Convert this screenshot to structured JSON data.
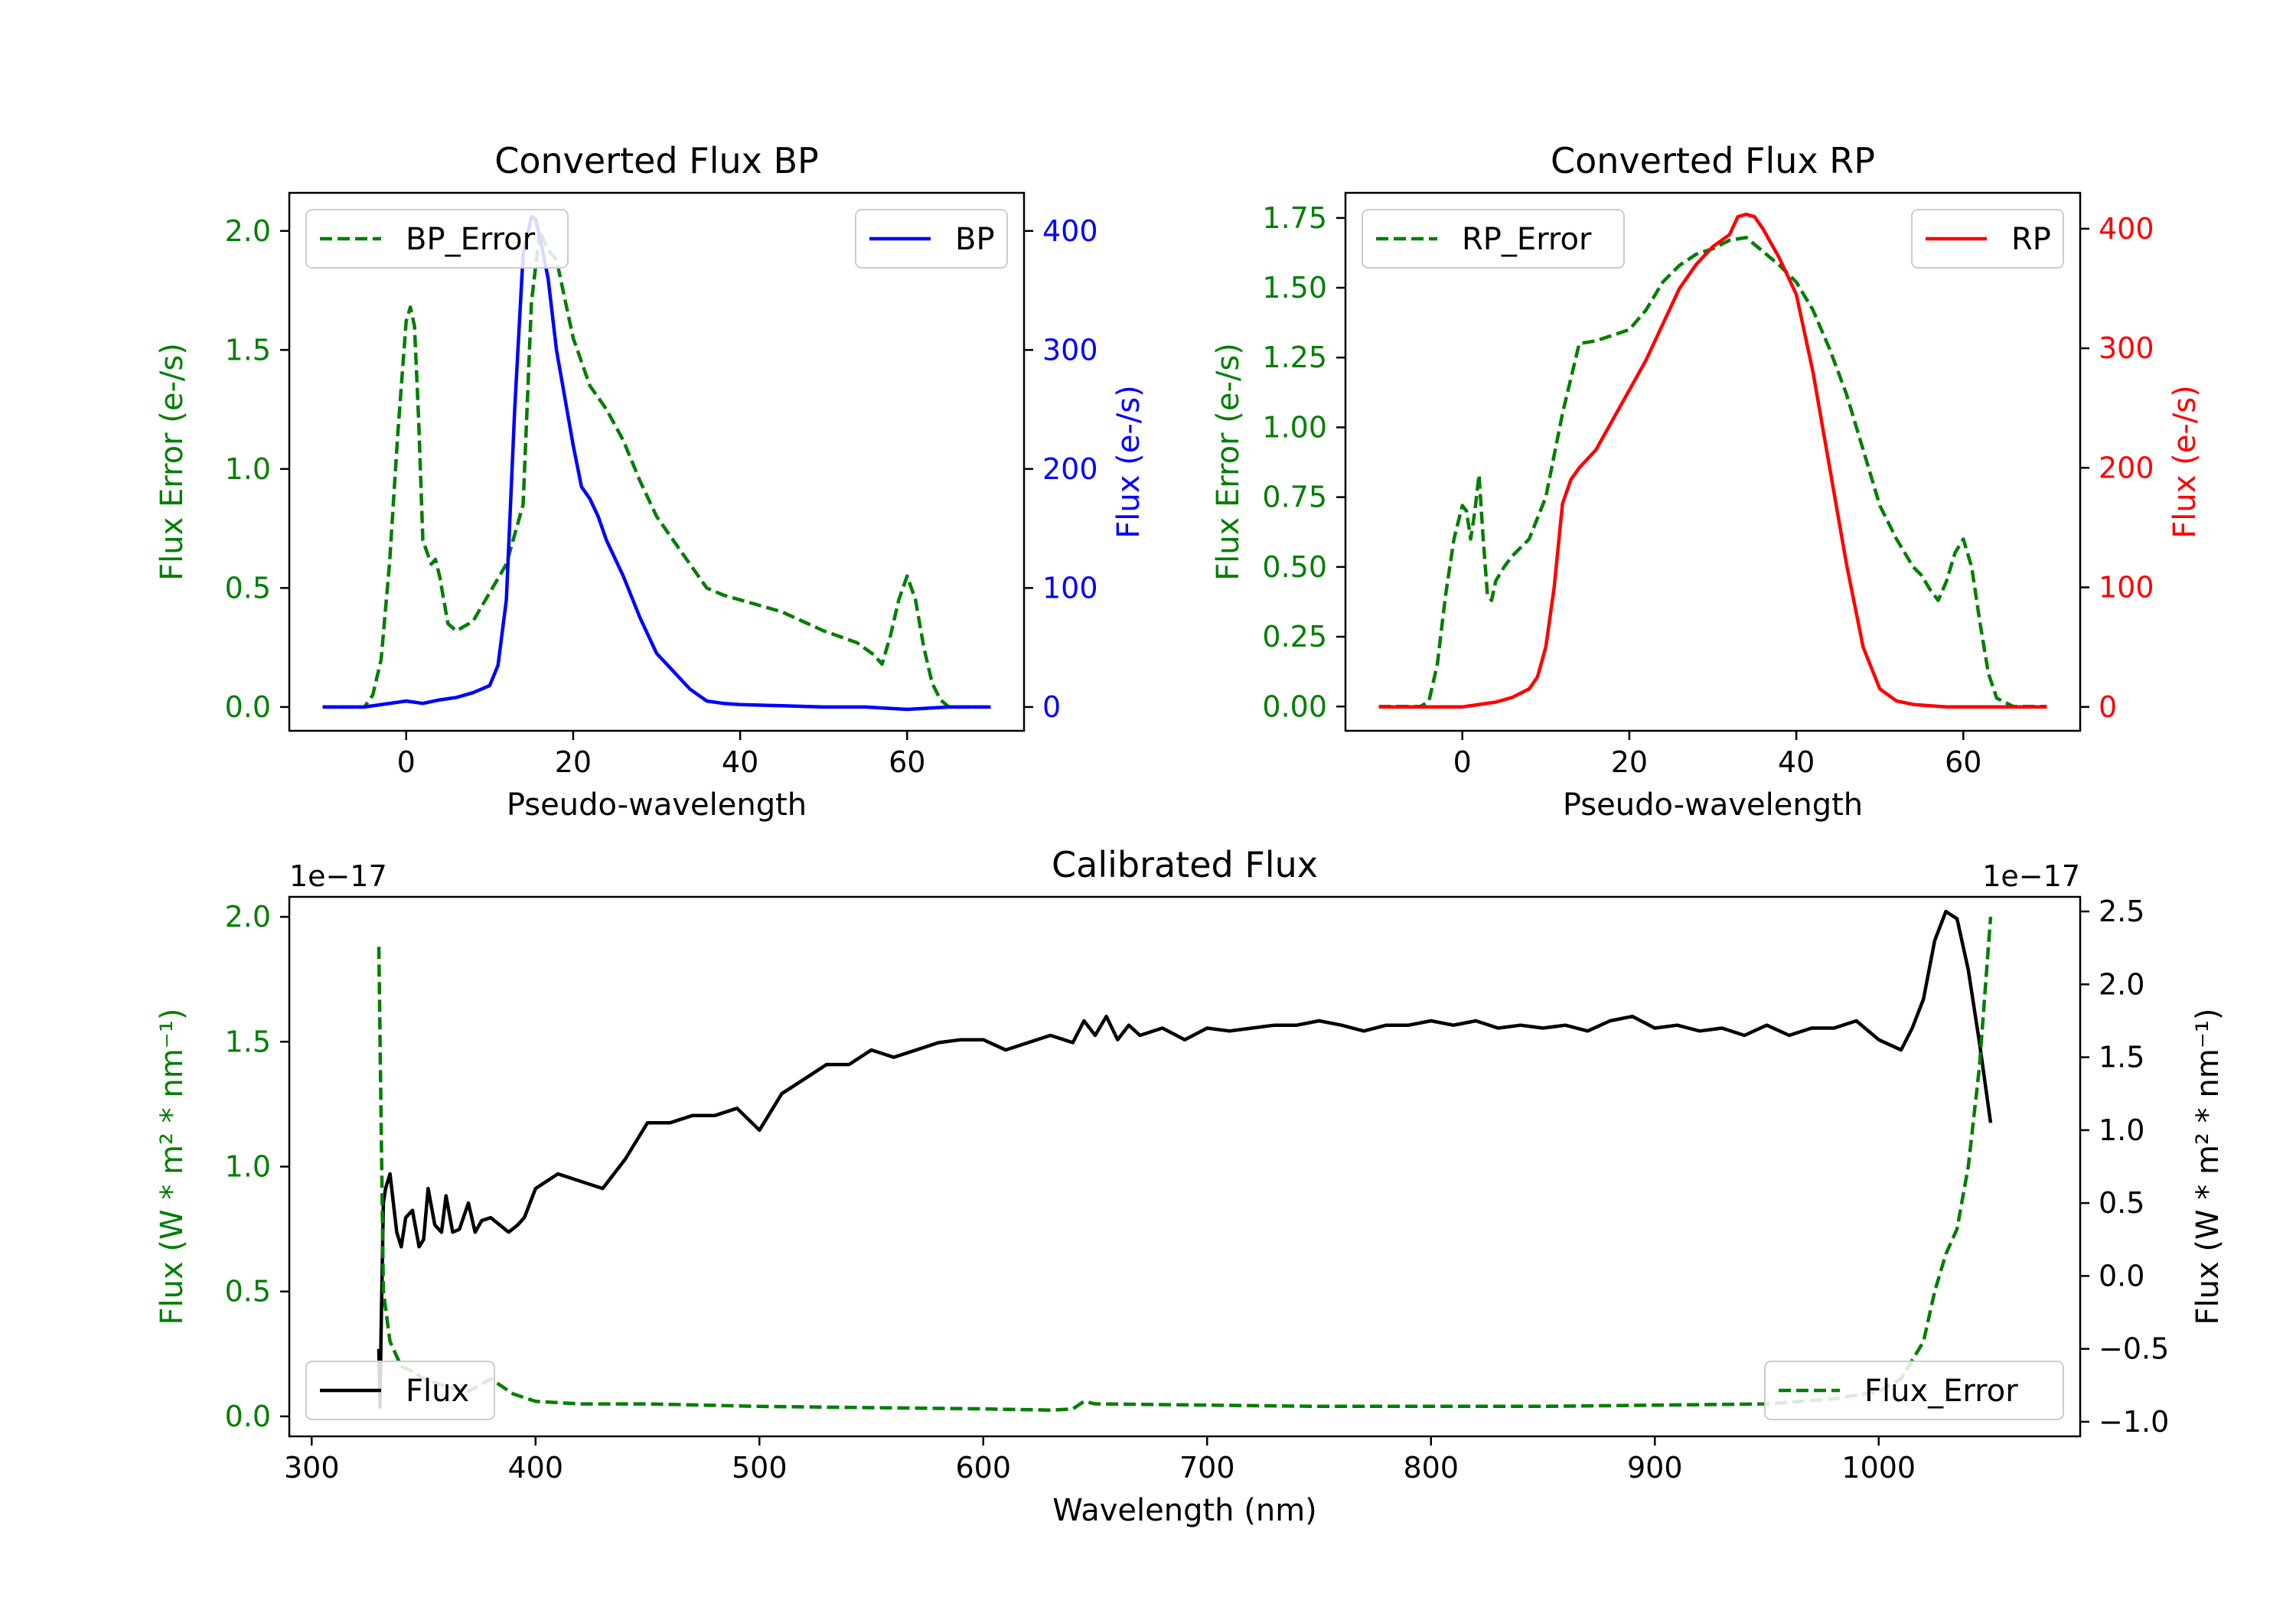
{
  "colors": {
    "green": "#007f00",
    "blue": "#0000ff",
    "red": "#ff0000",
    "black": "#000000"
  },
  "chart_data": [
    {
      "type": "line",
      "title": "Converted Flux BP",
      "xlabel": "Pseudo-wavelength",
      "ylabel": "Flux Error (e-/s)",
      "ylabel_right": "Flux (e-/s)",
      "xlim": [
        -14,
        74
      ],
      "ylim": [
        -0.1,
        2.16
      ],
      "ylim_right": [
        -20,
        432
      ],
      "xticks": [
        0,
        20,
        40,
        60
      ],
      "yticks": [
        "0.0",
        "0.5",
        "1.0",
        "1.5",
        "2.0"
      ],
      "yticks_right": [
        "0",
        "100",
        "200",
        "300",
        "400"
      ],
      "legend_left": "BP_Error",
      "legend_right": "BP",
      "series": [
        {
          "name": "BP_Error",
          "axis": "left",
          "style": "dashed",
          "color": "green",
          "x": [
            -10,
            -5,
            -4,
            -3,
            -2,
            -1,
            0,
            0.5,
            1,
            1.5,
            2,
            3,
            3.5,
            4,
            5,
            6,
            8,
            10,
            12,
            14,
            15,
            16,
            17,
            18,
            20,
            22,
            24,
            26,
            28,
            30,
            32,
            34,
            36,
            38,
            40,
            45,
            50,
            54,
            56,
            57,
            58,
            59,
            60,
            61,
            62,
            63,
            64,
            65,
            66,
            68,
            70
          ],
          "y": [
            0,
            0,
            0.05,
            0.2,
            0.6,
            1.15,
            1.62,
            1.68,
            1.6,
            1.2,
            0.7,
            0.6,
            0.62,
            0.55,
            0.35,
            0.32,
            0.36,
            0.48,
            0.6,
            0.85,
            1.7,
            2.0,
            1.92,
            1.88,
            1.55,
            1.35,
            1.25,
            1.12,
            0.95,
            0.8,
            0.7,
            0.6,
            0.5,
            0.47,
            0.45,
            0.4,
            0.32,
            0.27,
            0.22,
            0.18,
            0.3,
            0.45,
            0.55,
            0.45,
            0.25,
            0.1,
            0.03,
            0,
            0,
            0,
            0
          ]
        },
        {
          "name": "BP",
          "axis": "right",
          "style": "solid",
          "color": "blue",
          "x": [
            -10,
            -5,
            0,
            2,
            4,
            6,
            8,
            10,
            11,
            12,
            13,
            14,
            15,
            15.5,
            16,
            17,
            18,
            19,
            20,
            21,
            22,
            23,
            24,
            26,
            28,
            30,
            32,
            34,
            36,
            38,
            40,
            45,
            50,
            55,
            60,
            65,
            70
          ],
          "y": [
            0,
            0,
            5,
            3,
            6,
            8,
            12,
            18,
            35,
            90,
            250,
            380,
            412,
            410,
            395,
            360,
            300,
            260,
            220,
            185,
            175,
            160,
            140,
            110,
            75,
            45,
            30,
            15,
            5,
            3,
            2,
            1,
            0,
            0,
            -2,
            0,
            0
          ]
        }
      ]
    },
    {
      "type": "line",
      "title": "Converted Flux RP",
      "xlabel": "Pseudo-wavelength",
      "ylabel": "Flux Error (e-/s)",
      "ylabel_right": "Flux (e-/s)",
      "xlim": [
        -14,
        74
      ],
      "ylim": [
        -0.087,
        1.84
      ],
      "ylim_right": [
        -20,
        430
      ],
      "xticks": [
        0,
        20,
        40,
        60
      ],
      "yticks": [
        "0.00",
        "0.25",
        "0.50",
        "0.75",
        "1.00",
        "1.25",
        "1.50",
        "1.75"
      ],
      "yticks_right": [
        "0",
        "100",
        "200",
        "300",
        "400"
      ],
      "legend_left": "RP_Error",
      "legend_right": "RP",
      "series": [
        {
          "name": "RP_Error",
          "axis": "left",
          "style": "dashed",
          "color": "green",
          "x": [
            -10,
            -5,
            -4,
            -3,
            -2,
            -1,
            0,
            0.5,
            1,
            1.5,
            2,
            2.5,
            3,
            3.5,
            4,
            5,
            6,
            8,
            10,
            12,
            14,
            16,
            18,
            20,
            22,
            24,
            26,
            28,
            30,
            32,
            34,
            36,
            38,
            40,
            42,
            44,
            46,
            48,
            50,
            52,
            54,
            55,
            56,
            57,
            58,
            59,
            60,
            61,
            62,
            63,
            64,
            66,
            70
          ],
          "y": [
            0,
            0,
            0.02,
            0.15,
            0.4,
            0.6,
            0.72,
            0.7,
            0.6,
            0.7,
            0.83,
            0.6,
            0.4,
            0.38,
            0.45,
            0.5,
            0.54,
            0.6,
            0.75,
            1.05,
            1.3,
            1.31,
            1.33,
            1.35,
            1.42,
            1.52,
            1.58,
            1.62,
            1.64,
            1.67,
            1.68,
            1.63,
            1.58,
            1.52,
            1.42,
            1.28,
            1.12,
            0.92,
            0.72,
            0.6,
            0.5,
            0.47,
            0.42,
            0.38,
            0.45,
            0.55,
            0.6,
            0.5,
            0.3,
            0.12,
            0.03,
            0,
            0
          ]
        },
        {
          "name": "RP",
          "axis": "right",
          "style": "solid",
          "color": "red",
          "x": [
            -10,
            -5,
            0,
            2,
            4,
            6,
            8,
            9,
            10,
            11,
            12,
            13,
            14,
            16,
            18,
            20,
            22,
            24,
            26,
            28,
            30,
            32,
            33,
            34,
            35,
            36,
            38,
            40,
            42,
            44,
            46,
            48,
            50,
            52,
            54,
            56,
            58,
            60,
            62,
            65,
            70
          ],
          "y": [
            0,
            0,
            0,
            2,
            4,
            8,
            15,
            25,
            50,
            100,
            170,
            190,
            200,
            215,
            240,
            265,
            290,
            320,
            350,
            370,
            385,
            395,
            410,
            412,
            410,
            400,
            375,
            345,
            280,
            200,
            120,
            50,
            15,
            5,
            2,
            1,
            0,
            0,
            0,
            0,
            0
          ]
        }
      ]
    },
    {
      "type": "line",
      "title": "Calibrated Flux",
      "xlabel": "Wavelength (nm)",
      "ylabel": "Flux (W * m² * nm⁻¹)",
      "ylabel_right": "Flux (W * m² * nm⁻¹)",
      "offset_left": "1e−17",
      "offset_right": "1e−17",
      "xlim": [
        290,
        1090
      ],
      "ylim": [
        -0.08,
        2.08
      ],
      "ylim_right": [
        -1.1,
        2.6
      ],
      "xticks": [
        "300",
        "400",
        "500",
        "600",
        "700",
        "800",
        "900",
        "1000"
      ],
      "yticks": [
        "0.0",
        "0.5",
        "1.0",
        "1.5",
        "2.0"
      ],
      "yticks_right": [
        "−1.0",
        "−0.5",
        "0.0",
        "0.5",
        "1.0",
        "1.5",
        "2.0",
        "2.5"
      ],
      "legend_left": "Flux",
      "legend_right": "Flux_Error",
      "series": [
        {
          "name": "Flux",
          "axis": "right",
          "style": "solid",
          "color": "black",
          "x": [
            330,
            330.5,
            331,
            332,
            333,
            335,
            338,
            340,
            342,
            345,
            348,
            350,
            352,
            355,
            358,
            360,
            363,
            366,
            370,
            373,
            376,
            380,
            384,
            388,
            392,
            395,
            400,
            410,
            420,
            430,
            440,
            450,
            460,
            470,
            480,
            490,
            500,
            510,
            520,
            530,
            540,
            550,
            560,
            570,
            580,
            590,
            600,
            610,
            620,
            630,
            640,
            645,
            650,
            655,
            660,
            665,
            670,
            680,
            690,
            700,
            710,
            720,
            730,
            740,
            750,
            760,
            770,
            780,
            790,
            800,
            810,
            820,
            830,
            840,
            850,
            860,
            870,
            880,
            890,
            900,
            910,
            920,
            930,
            940,
            950,
            960,
            970,
            980,
            990,
            1000,
            1010,
            1015,
            1020,
            1025,
            1030,
            1035,
            1040,
            1045,
            1050
          ],
          "y": [
            -0.5,
            -0.9,
            -0.4,
            0.5,
            0.6,
            0.7,
            0.3,
            0.2,
            0.4,
            0.45,
            0.2,
            0.25,
            0.6,
            0.35,
            0.3,
            0.55,
            0.3,
            0.32,
            0.5,
            0.3,
            0.38,
            0.4,
            0.35,
            0.3,
            0.35,
            0.4,
            0.6,
            0.7,
            0.65,
            0.6,
            0.8,
            1.05,
            1.05,
            1.1,
            1.1,
            1.15,
            1.0,
            1.25,
            1.35,
            1.45,
            1.45,
            1.55,
            1.5,
            1.55,
            1.6,
            1.62,
            1.62,
            1.55,
            1.6,
            1.65,
            1.6,
            1.75,
            1.65,
            1.78,
            1.62,
            1.72,
            1.65,
            1.7,
            1.62,
            1.7,
            1.68,
            1.7,
            1.72,
            1.72,
            1.75,
            1.72,
            1.68,
            1.72,
            1.72,
            1.75,
            1.72,
            1.75,
            1.7,
            1.72,
            1.7,
            1.72,
            1.68,
            1.75,
            1.78,
            1.7,
            1.72,
            1.68,
            1.7,
            1.65,
            1.72,
            1.65,
            1.7,
            1.7,
            1.75,
            1.62,
            1.55,
            1.7,
            1.9,
            2.3,
            2.5,
            2.45,
            2.1,
            1.6,
            1.05
          ]
        },
        {
          "name": "Flux_Error",
          "axis": "left",
          "style": "dashed",
          "color": "green",
          "x": [
            330,
            331,
            332,
            335,
            340,
            345,
            350,
            360,
            370,
            380,
            385,
            390,
            400,
            420,
            450,
            500,
            550,
            600,
            630,
            640,
            645,
            650,
            700,
            750,
            800,
            850,
            900,
            950,
            980,
            1000,
            1010,
            1020,
            1025,
            1030,
            1035,
            1040,
            1045,
            1050
          ],
          "y": [
            1.88,
            1.2,
            0.5,
            0.3,
            0.2,
            0.18,
            0.15,
            0.12,
            0.1,
            0.15,
            0.12,
            0.09,
            0.06,
            0.05,
            0.05,
            0.04,
            0.035,
            0.03,
            0.025,
            0.03,
            0.06,
            0.05,
            0.045,
            0.04,
            0.04,
            0.04,
            0.045,
            0.05,
            0.07,
            0.1,
            0.15,
            0.3,
            0.5,
            0.65,
            0.75,
            1.0,
            1.4,
            2.0
          ]
        }
      ]
    }
  ]
}
